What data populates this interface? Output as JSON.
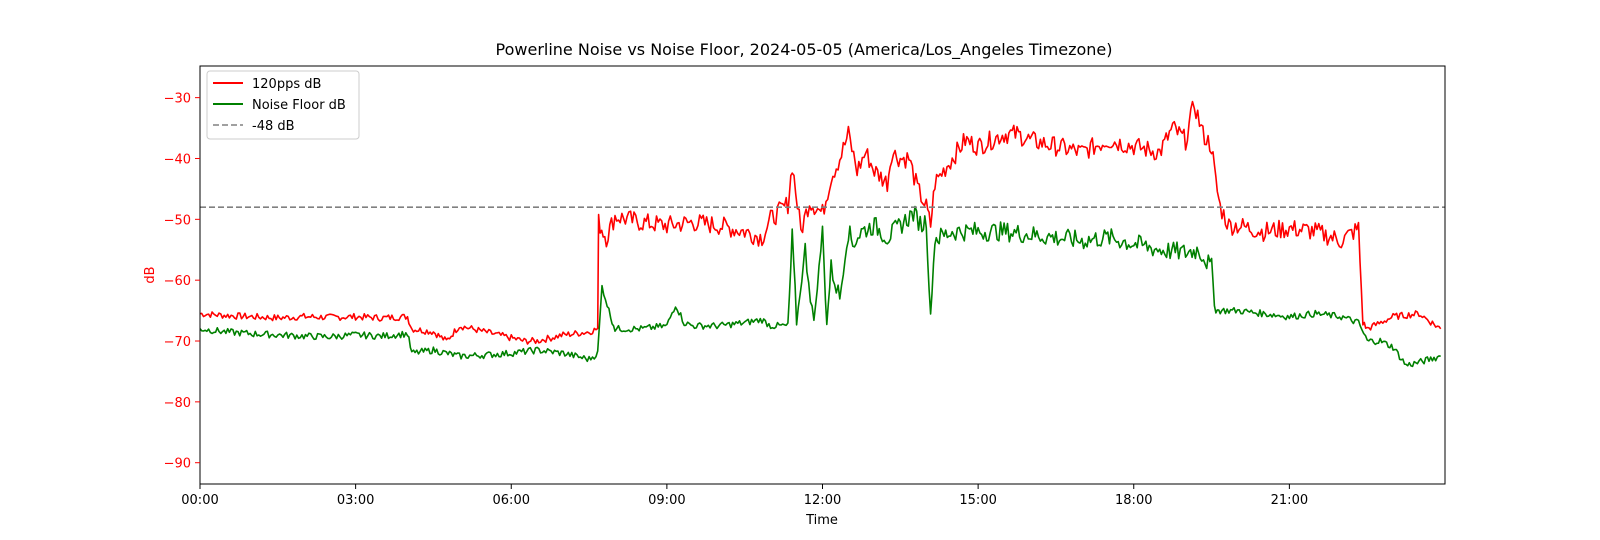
{
  "chart_data": {
    "type": "line",
    "title": "Powerline Noise vs Noise Floor, 2024-05-05 (America/Los_Angeles Timezone)",
    "xlabel": "Time",
    "ylabel": "dB",
    "ylabel_color": "#ff0000",
    "ytick_color": "#ff0000",
    "xlim": [
      "00:00",
      "24:00"
    ],
    "ylim": [
      -93.5,
      -24.8
    ],
    "x_ticks": [
      "00:00",
      "03:00",
      "06:00",
      "09:00",
      "12:00",
      "15:00",
      "18:00",
      "21:00"
    ],
    "y_ticks": [
      -30,
      -40,
      -50,
      -60,
      -70,
      -80,
      -90
    ],
    "grid": false,
    "legend_position": "upper-left",
    "legend": [
      "120pps dB",
      "Noise Floor dB",
      "-48 dB"
    ],
    "series": [
      {
        "name": "120pps dB",
        "color": "#ff0000",
        "style": "solid",
        "x": [
          "00:00",
          "00:30",
          "01:00",
          "01:30",
          "02:00",
          "02:30",
          "03:00",
          "03:30",
          "04:00",
          "04:05",
          "04:30",
          "04:45",
          "05:00",
          "05:30",
          "06:00",
          "06:15",
          "06:30",
          "07:00",
          "07:30",
          "07:40",
          "07:41",
          "07:50",
          "08:00",
          "08:30",
          "09:00",
          "09:30",
          "10:00",
          "10:30",
          "10:50",
          "11:00",
          "11:20",
          "11:25",
          "11:35",
          "11:45",
          "12:00",
          "12:10",
          "12:20",
          "12:30",
          "12:40",
          "12:50",
          "13:00",
          "13:15",
          "13:20",
          "13:30",
          "13:40",
          "13:50",
          "14:00",
          "14:05",
          "14:10",
          "14:20",
          "14:30",
          "14:45",
          "15:00",
          "15:15",
          "15:30",
          "15:45",
          "16:00",
          "16:30",
          "17:00",
          "17:30",
          "18:00",
          "18:30",
          "18:45",
          "19:00",
          "19:10",
          "19:20",
          "19:30",
          "19:35",
          "19:40",
          "19:50",
          "20:00",
          "20:30",
          "21:00",
          "21:30",
          "22:00",
          "22:20",
          "22:25",
          "22:30",
          "23:00",
          "23:30",
          "23:55"
        ],
        "y": [
          -65.5,
          -65.8,
          -66,
          -66.2,
          -66,
          -66.1,
          -66,
          -66.2,
          -66,
          -68,
          -68.5,
          -70,
          -67.5,
          -68.5,
          -69.5,
          -70,
          -70,
          -69,
          -68.5,
          -68,
          -50.5,
          -53,
          -49.5,
          -50.5,
          -51,
          -50.5,
          -51,
          -52,
          -53,
          -50,
          -47.5,
          -41,
          -52,
          -47,
          -49,
          -43,
          -40,
          -36,
          -42,
          -39,
          -42,
          -44,
          -39,
          -40,
          -40,
          -45,
          -48,
          -51,
          -44,
          -42,
          -40,
          -37,
          -38,
          -37,
          -36,
          -36,
          -37,
          -38,
          -39,
          -37,
          -38,
          -39,
          -35,
          -37,
          -31,
          -36,
          -38,
          -44,
          -48,
          -51,
          -51,
          -52,
          -51.5,
          -52,
          -53.5,
          -51.5,
          -67,
          -68,
          -66,
          -65.5,
          -68
        ]
      },
      {
        "name": "Noise Floor dB",
        "color": "#008000",
        "style": "solid",
        "x": [
          "00:00",
          "00:30",
          "01:00",
          "01:30",
          "02:00",
          "02:30",
          "03:00",
          "03:30",
          "04:00",
          "04:05",
          "04:30",
          "04:45",
          "05:00",
          "05:30",
          "06:00",
          "06:30",
          "07:00",
          "07:30",
          "07:40",
          "07:45",
          "07:55",
          "08:00",
          "08:30",
          "09:00",
          "09:10",
          "09:20",
          "09:30",
          "10:00",
          "10:30",
          "10:50",
          "11:00",
          "11:20",
          "11:25",
          "11:30",
          "11:40",
          "11:50",
          "12:00",
          "12:05",
          "12:10",
          "12:20",
          "12:30",
          "12:35",
          "12:45",
          "13:00",
          "13:15",
          "13:30",
          "13:45",
          "13:55",
          "14:00",
          "14:05",
          "14:10",
          "14:15",
          "14:30",
          "15:00",
          "15:30",
          "16:00",
          "16:30",
          "17:00",
          "17:30",
          "18:00",
          "18:30",
          "19:00",
          "19:15",
          "19:30",
          "19:35",
          "19:40",
          "20:00",
          "20:30",
          "21:00",
          "21:30",
          "22:00",
          "22:20",
          "22:30",
          "22:45",
          "23:00",
          "23:15",
          "23:30",
          "23:55"
        ],
        "y": [
          -68,
          -68.5,
          -68.8,
          -69,
          -69.2,
          -69.3,
          -69,
          -69.2,
          -68.8,
          -72,
          -71.5,
          -72,
          -72.5,
          -72.3,
          -72,
          -71.5,
          -72,
          -73,
          -72,
          -61,
          -66,
          -68,
          -68,
          -67.5,
          -64,
          -67,
          -67.5,
          -67.5,
          -67,
          -66.5,
          -67.5,
          -67.5,
          -53,
          -67,
          -55,
          -67,
          -52,
          -67,
          -58,
          -63,
          -52,
          -54,
          -52,
          -51,
          -53,
          -51,
          -49,
          -51,
          -50,
          -66,
          -53,
          -53,
          -52,
          -52,
          -52,
          -52.5,
          -53,
          -53.5,
          -53,
          -54,
          -55,
          -55.5,
          -55,
          -58,
          -65,
          -65,
          -65,
          -65.5,
          -66,
          -65.5,
          -66,
          -67,
          -70,
          -70,
          -71,
          -74,
          -73.5,
          -72.5
        ]
      },
      {
        "name": "-48 dB",
        "color": "#808080",
        "style": "dashed",
        "x": [
          "00:00",
          "24:00"
        ],
        "y": [
          -48,
          -48
        ]
      }
    ]
  }
}
